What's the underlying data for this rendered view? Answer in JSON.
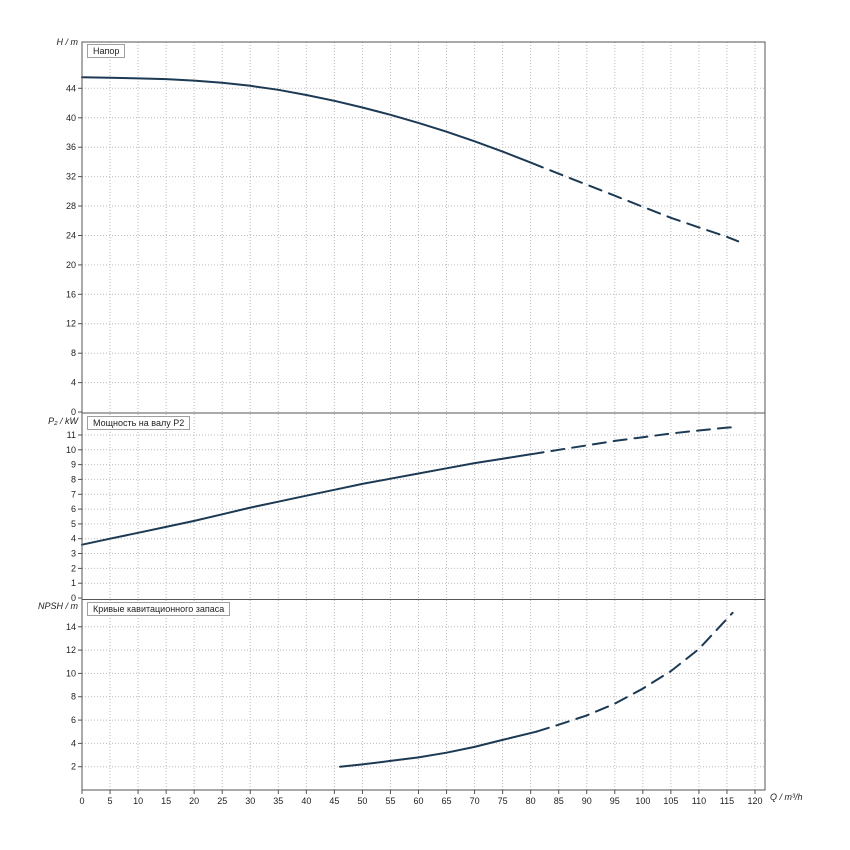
{
  "colors": {
    "curve": "#1c3a54",
    "grid": "#bcbcbc",
    "axis": "#555555",
    "text": "#222222",
    "background": "#ffffff"
  },
  "x_axis": {
    "label": "Q / m³/h",
    "min": 0,
    "max": 120,
    "ticks": [
      0,
      5,
      10,
      15,
      20,
      25,
      30,
      35,
      40,
      45,
      50,
      55,
      60,
      65,
      70,
      75,
      80,
      85,
      90,
      95,
      100,
      105,
      110,
      115,
      120
    ]
  },
  "chart_data": [
    {
      "type": "line",
      "title": "Напор",
      "ylabel": "H / m",
      "yticks": [
        0,
        4,
        8,
        12,
        16,
        20,
        24,
        28,
        32,
        36,
        40,
        44
      ],
      "ylim": [
        0,
        50.3
      ],
      "grid": true,
      "series": [
        {
          "name": "head-curve-solid",
          "style": "solid",
          "points": [
            [
              0,
              45.5
            ],
            [
              5,
              45.45
            ],
            [
              10,
              45.35
            ],
            [
              15,
              45.25
            ],
            [
              20,
              45.05
            ],
            [
              25,
              44.75
            ],
            [
              30,
              44.35
            ],
            [
              35,
              43.8
            ],
            [
              40,
              43.1
            ],
            [
              45,
              42.3
            ],
            [
              50,
              41.4
            ],
            [
              55,
              40.4
            ],
            [
              60,
              39.3
            ],
            [
              65,
              38.1
            ],
            [
              70,
              36.8
            ],
            [
              75,
              35.4
            ],
            [
              80,
              33.9
            ]
          ]
        },
        {
          "name": "head-curve-extrapolated",
          "style": "dashed",
          "points": [
            [
              80,
              33.9
            ],
            [
              85,
              32.4
            ],
            [
              90,
              30.9
            ],
            [
              95,
              29.4
            ],
            [
              100,
              27.9
            ],
            [
              105,
              26.4
            ],
            [
              110,
              25.1
            ],
            [
              115,
              23.8
            ],
            [
              117,
              23.2
            ]
          ]
        }
      ]
    },
    {
      "type": "line",
      "title": "Мощность на валу P2",
      "ylabel": "P₂ / kW",
      "yticks": [
        0,
        1,
        2,
        3,
        4,
        5,
        6,
        7,
        8,
        9,
        10,
        11
      ],
      "ylim": [
        0,
        12.45
      ],
      "grid": true,
      "series": [
        {
          "name": "power-curve-solid",
          "style": "solid",
          "points": [
            [
              0,
              3.6
            ],
            [
              5,
              4.0
            ],
            [
              10,
              4.4
            ],
            [
              15,
              4.8
            ],
            [
              20,
              5.2
            ],
            [
              25,
              5.65
            ],
            [
              30,
              6.1
            ],
            [
              35,
              6.5
            ],
            [
              40,
              6.9
            ],
            [
              45,
              7.3
            ],
            [
              50,
              7.7
            ],
            [
              55,
              8.05
            ],
            [
              60,
              8.4
            ],
            [
              65,
              8.75
            ],
            [
              70,
              9.1
            ],
            [
              75,
              9.4
            ],
            [
              80,
              9.7
            ]
          ]
        },
        {
          "name": "power-curve-extrapolated",
          "style": "dashed",
          "points": [
            [
              80,
              9.7
            ],
            [
              85,
              10.0
            ],
            [
              90,
              10.3
            ],
            [
              95,
              10.6
            ],
            [
              100,
              10.85
            ],
            [
              105,
              11.1
            ],
            [
              110,
              11.3
            ],
            [
              115,
              11.5
            ],
            [
              117,
              11.55
            ]
          ]
        }
      ]
    },
    {
      "type": "line",
      "title": "Кривые кавитационного запаса",
      "ylabel": "NPSH / m",
      "yticks": [
        2,
        4,
        6,
        8,
        10,
        12,
        14
      ],
      "ylim": [
        0,
        16.3
      ],
      "grid": true,
      "series": [
        {
          "name": "npsh-curve-solid",
          "style": "solid",
          "points": [
            [
              46,
              2.0
            ],
            [
              50,
              2.2
            ],
            [
              55,
              2.5
            ],
            [
              60,
              2.8
            ],
            [
              65,
              3.2
            ],
            [
              70,
              3.7
            ],
            [
              75,
              4.3
            ],
            [
              81,
              5.0
            ]
          ]
        },
        {
          "name": "npsh-curve-extrapolated",
          "style": "dashed",
          "points": [
            [
              81,
              5.0
            ],
            [
              85,
              5.6
            ],
            [
              90,
              6.4
            ],
            [
              95,
              7.4
            ],
            [
              100,
              8.7
            ],
            [
              105,
              10.2
            ],
            [
              110,
              12.1
            ],
            [
              116,
              15.2
            ]
          ]
        }
      ]
    }
  ]
}
